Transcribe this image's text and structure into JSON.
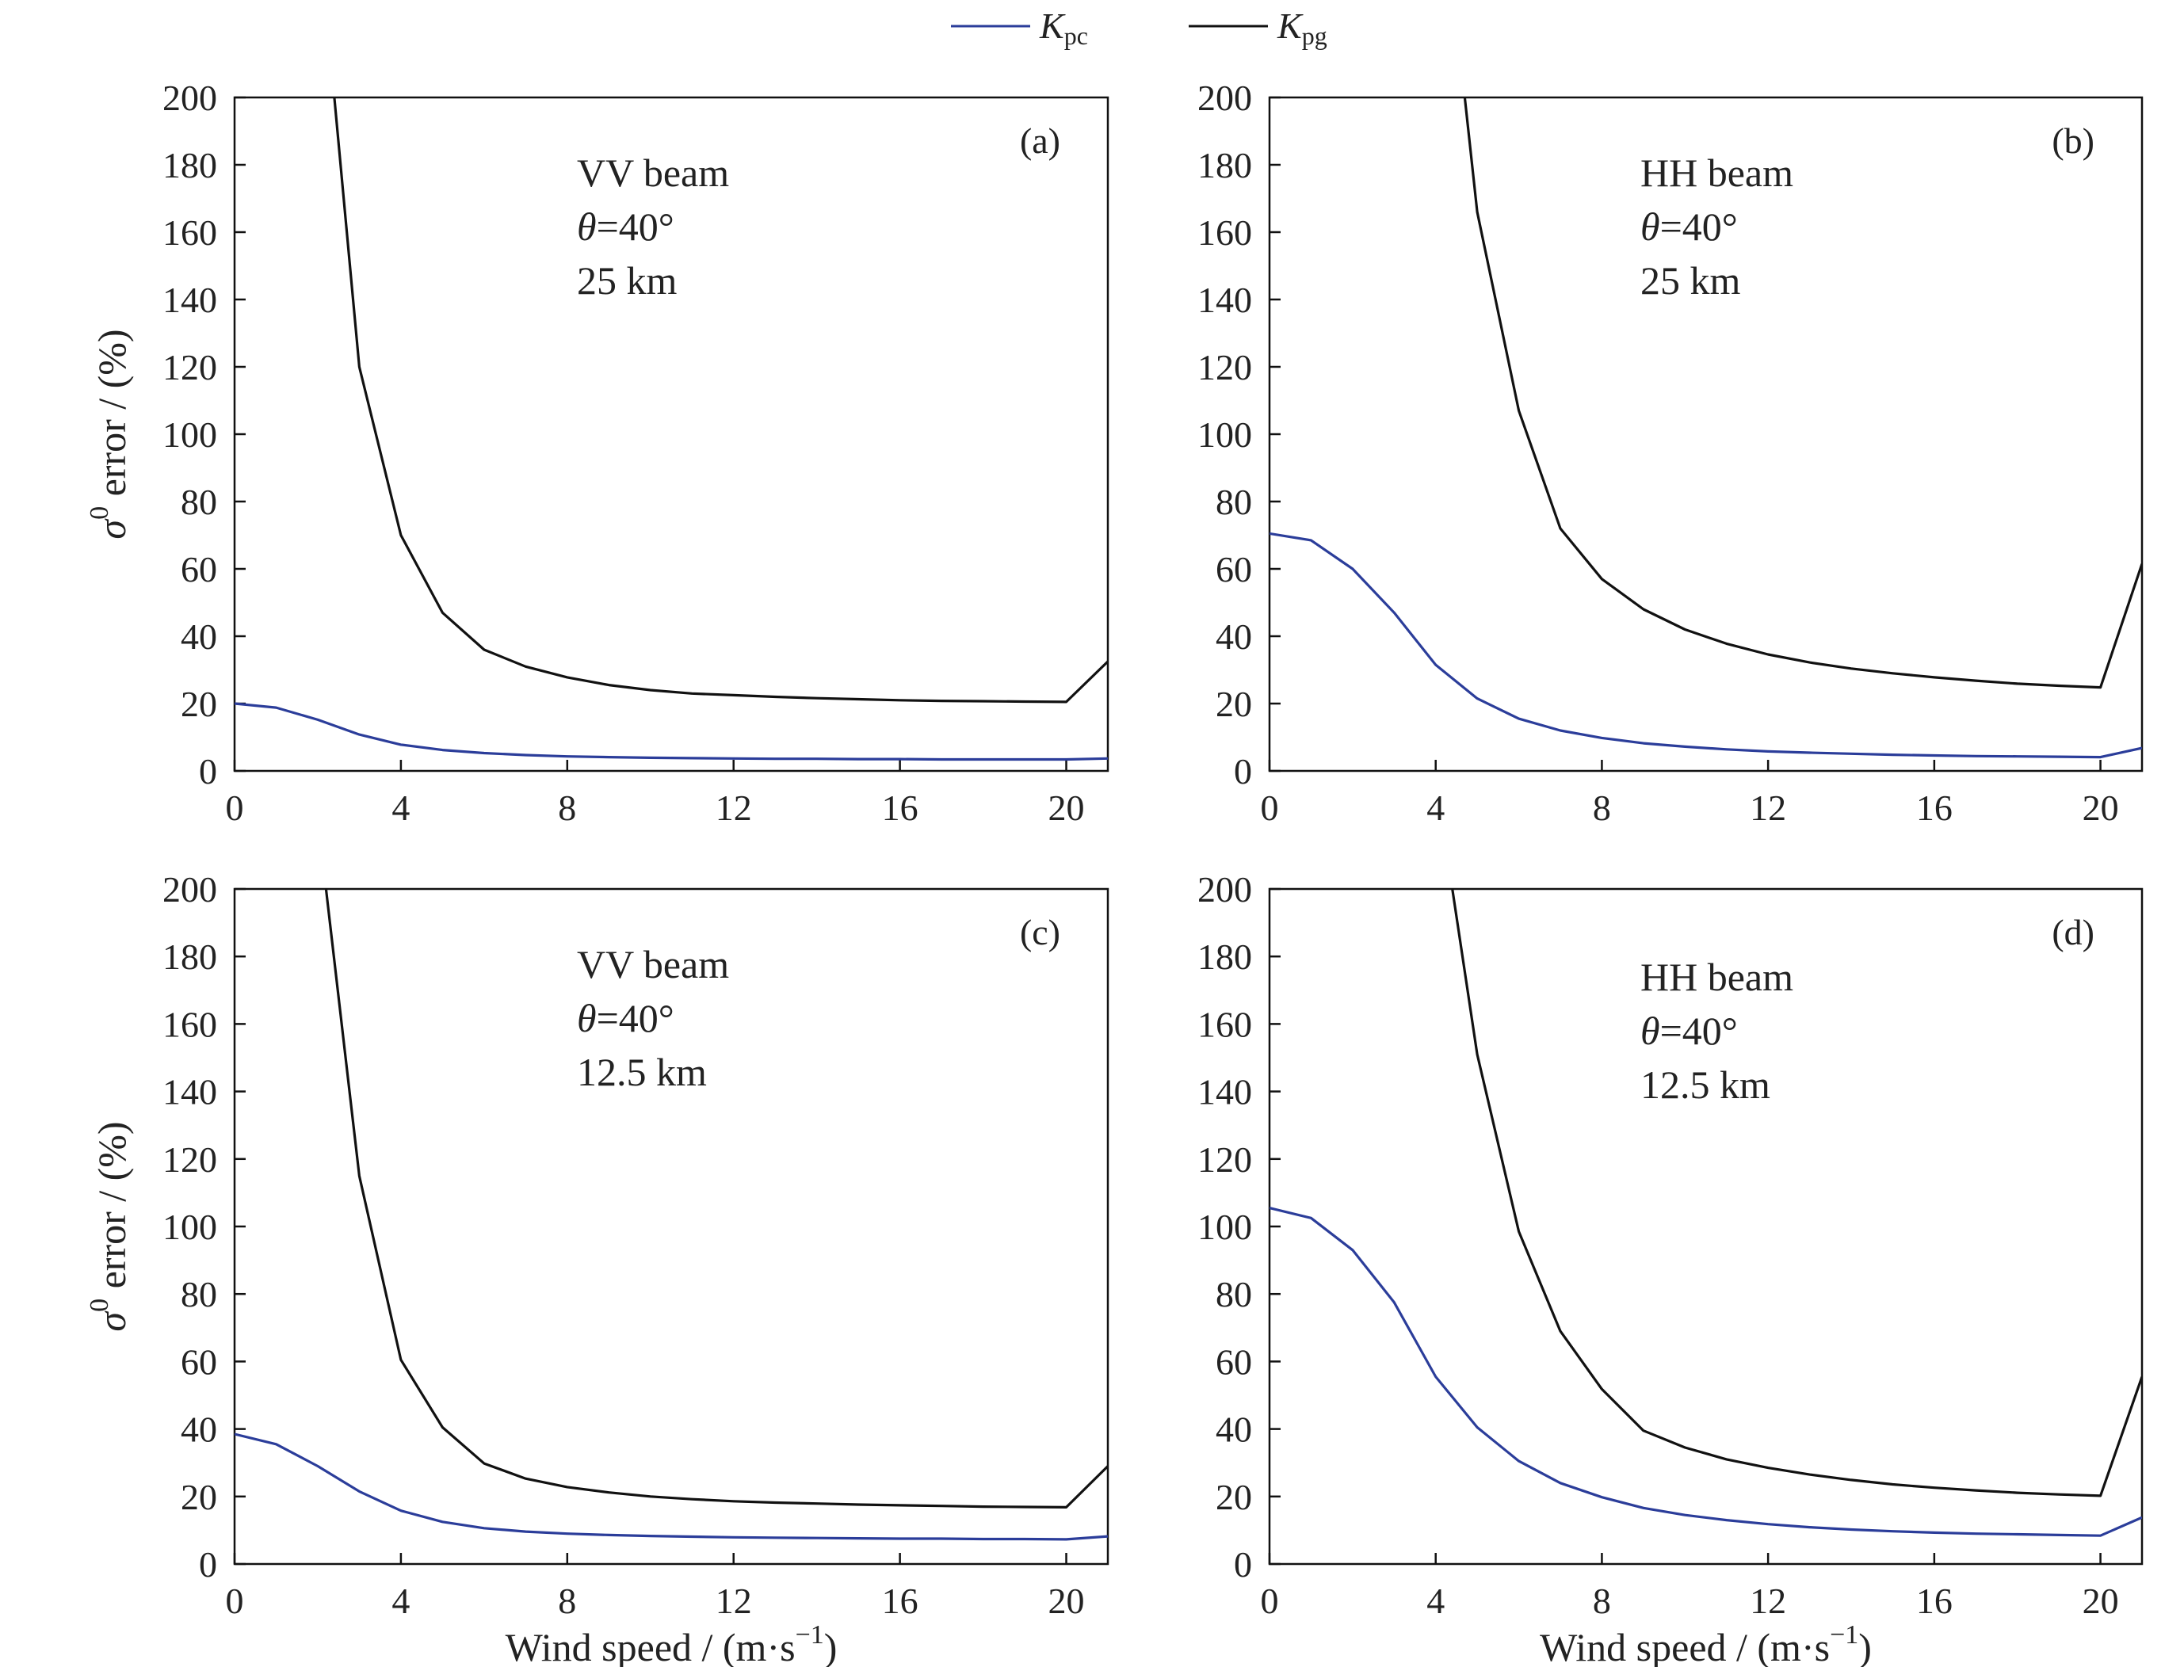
{
  "legend": [
    {
      "key": "Kpc",
      "main": "K",
      "sub": "pc",
      "color": "#2b3d9a"
    },
    {
      "key": "Kpg",
      "main": "K",
      "sub": "pg",
      "color": "#111111"
    }
  ],
  "chart_data": [
    {
      "type": "line",
      "panel_label": "(a)",
      "annotations": [
        "VV beam",
        "θ=40°",
        "25 km"
      ],
      "ylabel": "σ0 error / (%)",
      "ylabel_symbol": "σ",
      "ylabel_superscript": "0",
      "ylabel_text": " error / (%)",
      "xlabel": "",
      "xlim": [
        0,
        21
      ],
      "ylim": [
        0,
        200
      ],
      "xticks": [
        0,
        4,
        8,
        12,
        16,
        20
      ],
      "yticks": [
        0,
        20,
        40,
        60,
        80,
        100,
        120,
        140,
        160,
        180,
        200
      ],
      "series": [
        {
          "name": "Kpc",
          "color": "#2b3d9a",
          "x": [
            0,
            1,
            2,
            3,
            4,
            5,
            6,
            7,
            8,
            9,
            10,
            11,
            12,
            13,
            14,
            15,
            16,
            17,
            18,
            19,
            20,
            21
          ],
          "y": [
            20,
            18.8,
            15.2,
            10.8,
            7.8,
            6.2,
            5.3,
            4.7,
            4.3,
            4.1,
            3.9,
            3.8,
            3.7,
            3.6,
            3.6,
            3.5,
            3.5,
            3.4,
            3.4,
            3.4,
            3.4,
            3.7
          ]
        },
        {
          "name": "Kpg",
          "color": "#111111",
          "x": [
            2.4,
            3,
            4,
            5,
            6,
            7,
            8,
            9,
            10,
            11,
            12,
            13,
            14,
            15,
            16,
            17,
            18,
            19,
            20,
            21
          ],
          "y": [
            200,
            120,
            70,
            47,
            36,
            31,
            27.8,
            25.5,
            24,
            23,
            22.5,
            22,
            21.6,
            21.3,
            21,
            20.8,
            20.7,
            20.6,
            20.5,
            32.5
          ]
        }
      ]
    },
    {
      "type": "line",
      "panel_label": "(b)",
      "annotations": [
        "HH beam",
        "θ=40°",
        "25 km"
      ],
      "ylabel": "",
      "xlabel": "",
      "xlim": [
        0,
        21
      ],
      "ylim": [
        0,
        200
      ],
      "xticks": [
        0,
        4,
        8,
        12,
        16,
        20
      ],
      "yticks": [
        0,
        20,
        40,
        60,
        80,
        100,
        120,
        140,
        160,
        180,
        200
      ],
      "series": [
        {
          "name": "Kpc",
          "color": "#2b3d9a",
          "x": [
            0,
            1,
            2,
            3,
            4,
            5,
            6,
            7,
            8,
            9,
            10,
            11,
            12,
            13,
            14,
            15,
            16,
            17,
            18,
            19,
            20,
            21
          ],
          "y": [
            70.5,
            68.5,
            60,
            47,
            31.5,
            21.5,
            15.5,
            12,
            9.8,
            8.2,
            7.2,
            6.4,
            5.8,
            5.4,
            5.1,
            4.8,
            4.6,
            4.4,
            4.3,
            4.2,
            4.1,
            6.8
          ]
        },
        {
          "name": "Kpg",
          "color": "#111111",
          "x": [
            4.7,
            5,
            6,
            7,
            8,
            9,
            10,
            11,
            12,
            13,
            14,
            15,
            16,
            17,
            18,
            19,
            20,
            21
          ],
          "y": [
            200,
            166,
            107,
            72,
            57,
            48,
            42,
            37.8,
            34.6,
            32.2,
            30.4,
            29,
            27.8,
            26.8,
            25.9,
            25.3,
            24.8,
            61.5
          ]
        }
      ]
    },
    {
      "type": "line",
      "panel_label": "(c)",
      "annotations": [
        "VV beam",
        "θ=40°",
        "12.5 km"
      ],
      "ylabel": "σ0 error / (%)",
      "ylabel_symbol": "σ",
      "ylabel_superscript": "0",
      "ylabel_text": " error / (%)",
      "xlabel": "Wind speed / (m·s−1)",
      "xlabel_text": "Wind speed / (m·s",
      "xlabel_superscript": "−1",
      "xlabel_close": ")",
      "xlim": [
        0,
        21
      ],
      "ylim": [
        0,
        200
      ],
      "xticks": [
        0,
        4,
        8,
        12,
        16,
        20
      ],
      "yticks": [
        0,
        20,
        40,
        60,
        80,
        100,
        120,
        140,
        160,
        180,
        200
      ],
      "series": [
        {
          "name": "Kpc",
          "color": "#2b3d9a",
          "x": [
            0,
            1,
            2,
            3,
            4,
            5,
            6,
            7,
            8,
            9,
            10,
            11,
            12,
            13,
            14,
            15,
            16,
            17,
            18,
            19,
            20,
            21
          ],
          "y": [
            38.5,
            35.5,
            29,
            21.5,
            15.8,
            12.5,
            10.6,
            9.6,
            9,
            8.6,
            8.3,
            8.1,
            7.9,
            7.8,
            7.7,
            7.6,
            7.5,
            7.5,
            7.4,
            7.4,
            7.3,
            8.2
          ]
        },
        {
          "name": "Kpg",
          "color": "#111111",
          "x": [
            2.2,
            3,
            4,
            5,
            6,
            7,
            8,
            9,
            10,
            11,
            12,
            13,
            14,
            15,
            16,
            17,
            18,
            19,
            20,
            21
          ],
          "y": [
            200,
            115,
            60.5,
            40.5,
            29.8,
            25.3,
            22.8,
            21.2,
            20,
            19.2,
            18.6,
            18.2,
            17.9,
            17.6,
            17.4,
            17.2,
            17,
            16.9,
            16.8,
            29
          ]
        }
      ]
    },
    {
      "type": "line",
      "panel_label": "(d)",
      "annotations": [
        "HH beam",
        "θ=40°",
        "12.5 km"
      ],
      "ylabel": "",
      "xlabel": "Wind speed / (m·s−1)",
      "xlabel_text": "Wind speed / (m·s",
      "xlabel_superscript": "−1",
      "xlabel_close": ")",
      "xlim": [
        0,
        21
      ],
      "ylim": [
        0,
        200
      ],
      "xticks": [
        0,
        4,
        8,
        12,
        16,
        20
      ],
      "yticks": [
        0,
        20,
        40,
        60,
        80,
        100,
        120,
        140,
        160,
        180,
        200
      ],
      "series": [
        {
          "name": "Kpc",
          "color": "#2b3d9a",
          "x": [
            0,
            1,
            2,
            3,
            4,
            5,
            6,
            7,
            8,
            9,
            10,
            11,
            12,
            13,
            14,
            15,
            16,
            17,
            18,
            19,
            20,
            21
          ],
          "y": [
            105.5,
            102.5,
            93,
            77.5,
            55.5,
            40.5,
            30.5,
            24,
            19.8,
            16.6,
            14.5,
            13,
            11.8,
            10.9,
            10.2,
            9.7,
            9.3,
            9,
            8.8,
            8.6,
            8.4,
            13.8
          ]
        },
        {
          "name": "Kpg",
          "color": "#111111",
          "x": [
            4.4,
            5,
            6,
            7,
            8,
            9,
            10,
            11,
            12,
            13,
            14,
            15,
            16,
            17,
            18,
            19,
            20,
            21
          ],
          "y": [
            200,
            151,
            98.5,
            69,
            51.8,
            39.5,
            34.5,
            31,
            28.5,
            26.5,
            24.9,
            23.6,
            22.6,
            21.8,
            21.1,
            20.6,
            20.2,
            55.5
          ]
        }
      ]
    }
  ]
}
